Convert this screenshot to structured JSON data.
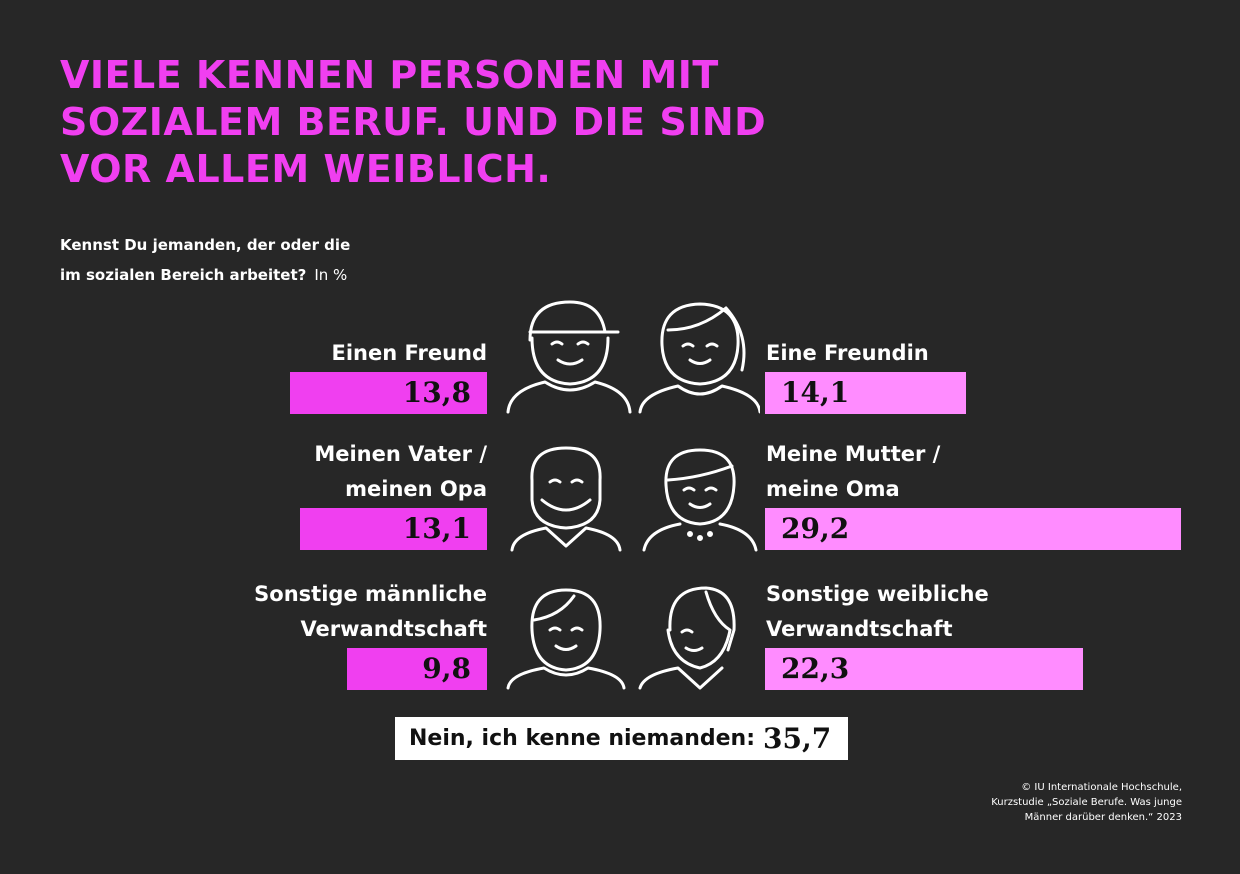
{
  "chart_data": {
    "type": "butterfly",
    "title": [
      "VIELE KENNEN PERSONEN MIT",
      "SOZIALEM BERUF. UND DIE SIND",
      "VOR ALLEM WEIBLICH."
    ],
    "subtitle": [
      "Kennst Du jemanden, der oder die",
      "im sozialen Bereich arbeitet?"
    ],
    "unit_label": "In %",
    "groups": [
      {
        "side": "left",
        "color": "#f03ff0",
        "categories": [
          [
            "Einen Freund"
          ],
          [
            "Meinen Vater /",
            "meinen Opa"
          ],
          [
            "Sonstige männliche",
            "Verwandtschaft"
          ]
        ],
        "values": [
          13.8,
          13.1,
          9.8
        ],
        "value_labels": [
          "13,8",
          "13,1",
          "9,8"
        ]
      },
      {
        "side": "right",
        "color": "#ff8cff",
        "categories": [
          [
            "Eine Freundin"
          ],
          [
            "Meine Mutter /",
            "meine Oma"
          ],
          [
            "Sonstige weibliche",
            "Verwandtschaft"
          ]
        ],
        "values": [
          14.1,
          29.2,
          22.3
        ],
        "value_labels": [
          "14,1",
          "29,2",
          "22,3"
        ]
      }
    ],
    "none": {
      "label": "Nein, ich kenne niemanden:",
      "value": 35.7,
      "value_label": "35,7"
    },
    "source": [
      "© IU Internationale Hochschule,",
      "Kurzstudie „Soziale Berufe. Was junge",
      "Männer darüber denken.“ 2023"
    ]
  }
}
